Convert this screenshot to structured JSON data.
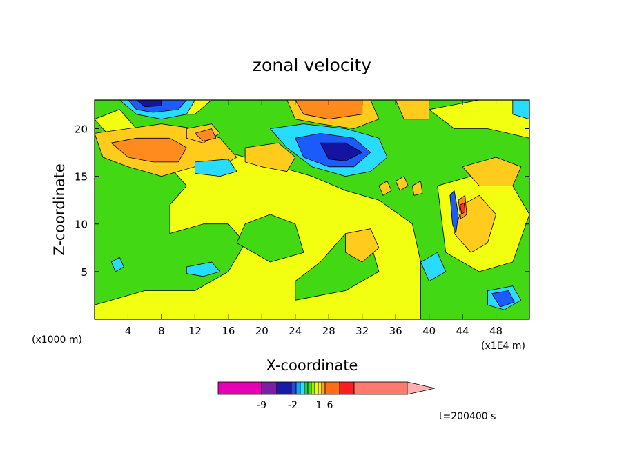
{
  "chart_data": {
    "type": "heatmap",
    "title": "zonal velocity",
    "xlabel": "X-coordinate",
    "ylabel": "Z-coordinate",
    "x_unit_left": "(x1000 m)",
    "x_unit_right": "(x1E4 m)",
    "xlim": [
      0,
      52
    ],
    "ylim": [
      0,
      23
    ],
    "x_ticks": [
      "4",
      "8",
      "12",
      "16",
      "20",
      "24",
      "28",
      "32",
      "36",
      "40",
      "44",
      "48"
    ],
    "x_tick_values": [
      4,
      8,
      12,
      16,
      20,
      24,
      28,
      32,
      36,
      40,
      44,
      48
    ],
    "y_ticks": [
      "5",
      "10",
      "15",
      "20"
    ],
    "y_tick_values": [
      5,
      10,
      15,
      20
    ],
    "time_label": "t=200400 s",
    "colorbar": {
      "labels": [
        "-9",
        "-2",
        "1",
        "6"
      ],
      "colors": [
        "#e600b4",
        "#7a1fa6",
        "#1a1aa6",
        "#2a48d6",
        "#1e9bff",
        "#28e0ff",
        "#20c860",
        "#46dc14",
        "#9ef000",
        "#e8ff00",
        "#ffe01e",
        "#ffa01e",
        "#ff6e14",
        "#ff1e1e",
        "#ff7a6e",
        "#ffb0b0"
      ]
    },
    "palette": {
      "green": "#42d814",
      "yellow": "#f2ff10",
      "gold": "#ffcc1e",
      "orange": "#ff8a1e",
      "cyan": "#28dcff",
      "blue": "#1c5cff",
      "darkblue": "#1414a0",
      "red": "#ff3218"
    },
    "regions": [
      {
        "level": "green",
        "points": [
          [
            0,
            23
          ],
          [
            0,
            0
          ],
          [
            52,
            0
          ],
          [
            52,
            23
          ]
        ]
      },
      {
        "level": "yellow",
        "points": [
          [
            9,
            18
          ],
          [
            16,
            17.5
          ],
          [
            22,
            16
          ],
          [
            26,
            15
          ],
          [
            30,
            13.5
          ],
          [
            34,
            12.5
          ],
          [
            38,
            10
          ],
          [
            39,
            6
          ],
          [
            39,
            0
          ],
          [
            0,
            0
          ],
          [
            0,
            1.5
          ],
          [
            6,
            3
          ],
          [
            12,
            3
          ],
          [
            16,
            5
          ],
          [
            18,
            8
          ],
          [
            16,
            10
          ],
          [
            13,
            10
          ],
          [
            9,
            9
          ],
          [
            9,
            12
          ],
          [
            11,
            14
          ],
          [
            9,
            16
          ]
        ]
      },
      {
        "level": "green",
        "points": [
          [
            17,
            8
          ],
          [
            21,
            6
          ],
          [
            25,
            7
          ],
          [
            24,
            10
          ],
          [
            21,
            11
          ],
          [
            18,
            10
          ]
        ]
      },
      {
        "level": "green",
        "points": [
          [
            24,
            2
          ],
          [
            30,
            3
          ],
          [
            34,
            5
          ],
          [
            33,
            8
          ],
          [
            30,
            9
          ],
          [
            27,
            6
          ],
          [
            24,
            4
          ]
        ]
      },
      {
        "level": "yellow",
        "points": [
          [
            6,
            23
          ],
          [
            14,
            23
          ],
          [
            12,
            21.5
          ],
          [
            8,
            21.5
          ]
        ]
      },
      {
        "level": "yellow",
        "points": [
          [
            40,
            22
          ],
          [
            46,
            23
          ],
          [
            52,
            23
          ],
          [
            52,
            19
          ],
          [
            47,
            20
          ],
          [
            43,
            20
          ]
        ]
      },
      {
        "level": "yellow",
        "points": [
          [
            41,
            14
          ],
          [
            45,
            15
          ],
          [
            50,
            14
          ],
          [
            52,
            11
          ],
          [
            50,
            6
          ],
          [
            46,
            5
          ],
          [
            42,
            7
          ]
        ]
      },
      {
        "level": "yellow",
        "points": [
          [
            0,
            21
          ],
          [
            3,
            22
          ],
          [
            5,
            20
          ],
          [
            2,
            19
          ]
        ]
      },
      {
        "level": "gold",
        "points": [
          [
            0,
            19.5
          ],
          [
            4,
            20
          ],
          [
            8,
            20.5
          ],
          [
            12,
            20
          ],
          [
            15,
            19
          ],
          [
            17,
            17
          ],
          [
            15,
            16
          ],
          [
            12,
            16
          ],
          [
            8,
            15
          ],
          [
            4,
            16
          ],
          [
            1,
            17
          ]
        ]
      },
      {
        "level": "orange",
        "points": [
          [
            2,
            18.5
          ],
          [
            5,
            19
          ],
          [
            9,
            19
          ],
          [
            11,
            18
          ],
          [
            10,
            16.5
          ],
          [
            7,
            16.5
          ],
          [
            4,
            17
          ]
        ]
      },
      {
        "level": "gold",
        "points": [
          [
            18,
            18
          ],
          [
            22,
            18.5
          ],
          [
            24,
            17
          ],
          [
            23,
            15.5
          ],
          [
            20,
            16
          ],
          [
            18,
            16.5
          ]
        ]
      },
      {
        "level": "gold",
        "points": [
          [
            23,
            23
          ],
          [
            33,
            23
          ],
          [
            34,
            21
          ],
          [
            31,
            20
          ],
          [
            27,
            20.5
          ],
          [
            24,
            21
          ]
        ]
      },
      {
        "level": "orange",
        "points": [
          [
            24,
            23
          ],
          [
            32,
            23
          ],
          [
            32,
            21.5
          ],
          [
            28,
            21
          ],
          [
            25,
            21.5
          ]
        ]
      },
      {
        "level": "gold",
        "points": [
          [
            11,
            20
          ],
          [
            14,
            20.5
          ],
          [
            15,
            19.5
          ],
          [
            13,
            18.5
          ],
          [
            11,
            19
          ]
        ]
      },
      {
        "level": "orange",
        "points": [
          [
            12,
            19.5
          ],
          [
            14,
            20
          ],
          [
            14.5,
            19
          ],
          [
            13,
            18.7
          ]
        ]
      },
      {
        "level": "gold",
        "points": [
          [
            30,
            9
          ],
          [
            33,
            9.5
          ],
          [
            34,
            7.5
          ],
          [
            32,
            6
          ],
          [
            30,
            7
          ]
        ]
      },
      {
        "level": "gold",
        "points": [
          [
            36,
            23
          ],
          [
            40,
            23
          ],
          [
            40,
            21
          ],
          [
            37,
            21
          ]
        ]
      },
      {
        "level": "gold",
        "points": [
          [
            44,
            16
          ],
          [
            48,
            17
          ],
          [
            51,
            16
          ],
          [
            50,
            14
          ],
          [
            46,
            14
          ]
        ]
      },
      {
        "level": "gold",
        "points": [
          [
            44,
            12
          ],
          [
            46,
            13
          ],
          [
            48,
            11
          ],
          [
            47,
            8
          ],
          [
            45,
            7
          ],
          [
            43,
            9
          ]
        ]
      },
      {
        "level": "cyan",
        "points": [
          [
            21,
            20
          ],
          [
            25,
            20.5
          ],
          [
            30,
            20
          ],
          [
            34,
            19
          ],
          [
            35,
            17
          ],
          [
            33,
            15.5
          ],
          [
            30,
            15
          ],
          [
            26,
            16
          ],
          [
            23,
            18
          ]
        ]
      },
      {
        "level": "blue",
        "points": [
          [
            24,
            19
          ],
          [
            27,
            19.5
          ],
          [
            31,
            19
          ],
          [
            33,
            17.5
          ],
          [
            31,
            16
          ],
          [
            28,
            16
          ],
          [
            25,
            17
          ]
        ]
      },
      {
        "level": "darkblue",
        "points": [
          [
            27,
            18.5
          ],
          [
            30,
            18.5
          ],
          [
            32,
            17.5
          ],
          [
            30,
            16.6
          ],
          [
            28,
            16.8
          ]
        ]
      },
      {
        "level": "cyan",
        "points": [
          [
            3,
            23
          ],
          [
            12,
            23
          ],
          [
            11,
            21.5
          ],
          [
            8,
            21
          ],
          [
            5,
            21.5
          ]
        ]
      },
      {
        "level": "blue",
        "points": [
          [
            4,
            23
          ],
          [
            11,
            23
          ],
          [
            10,
            22
          ],
          [
            7,
            21.7
          ],
          [
            5,
            22
          ]
        ]
      },
      {
        "level": "darkblue",
        "points": [
          [
            5,
            23
          ],
          [
            8,
            23
          ],
          [
            8,
            22.4
          ],
          [
            6,
            22.3
          ]
        ]
      },
      {
        "level": "cyan",
        "points": [
          [
            12,
            16.5
          ],
          [
            16,
            16.8
          ],
          [
            17,
            15.5
          ],
          [
            15,
            15
          ],
          [
            12,
            15.3
          ]
        ]
      },
      {
        "level": "cyan",
        "points": [
          [
            11,
            5.5
          ],
          [
            14,
            6
          ],
          [
            15,
            5
          ],
          [
            13,
            4.5
          ],
          [
            11,
            4.8
          ]
        ]
      },
      {
        "level": "cyan",
        "points": [
          [
            2,
            6
          ],
          [
            3,
            6.5
          ],
          [
            3.5,
            5.5
          ],
          [
            2.5,
            5
          ]
        ]
      },
      {
        "level": "cyan",
        "points": [
          [
            47,
            3
          ],
          [
            50,
            3.5
          ],
          [
            51,
            2
          ],
          [
            49,
            1
          ],
          [
            47,
            1.5
          ]
        ]
      },
      {
        "level": "blue",
        "points": [
          [
            47.5,
            2.7
          ],
          [
            49.5,
            3
          ],
          [
            50.2,
            1.8
          ],
          [
            48.5,
            1.3
          ]
        ]
      },
      {
        "level": "cyan",
        "points": [
          [
            39,
            6
          ],
          [
            41,
            7
          ],
          [
            42,
            5
          ],
          [
            40,
            4
          ]
        ]
      },
      {
        "level": "cyan",
        "points": [
          [
            50,
            23
          ],
          [
            52,
            23
          ],
          [
            52,
            21
          ],
          [
            50,
            21.5
          ]
        ]
      },
      {
        "level": "blue",
        "points": [
          [
            42.5,
            13
          ],
          [
            43,
            13.5
          ],
          [
            43.5,
            11
          ],
          [
            43.2,
            9
          ],
          [
            42.8,
            10
          ]
        ]
      },
      {
        "level": "orange",
        "points": [
          [
            43.5,
            12.5
          ],
          [
            44.3,
            13
          ],
          [
            44.5,
            11
          ],
          [
            43.8,
            10.5
          ]
        ]
      },
      {
        "level": "red",
        "points": [
          [
            43.7,
            12
          ],
          [
            44.2,
            12.2
          ],
          [
            44.3,
            11.3
          ],
          [
            43.9,
            11
          ]
        ]
      },
      {
        "level": "gold",
        "points": [
          [
            34,
            14
          ],
          [
            35,
            14.5
          ],
          [
            35.5,
            13.5
          ],
          [
            34.5,
            13
          ]
        ]
      },
      {
        "level": "gold",
        "points": [
          [
            36,
            14.5
          ],
          [
            37,
            15
          ],
          [
            37.5,
            14
          ],
          [
            36.5,
            13.5
          ]
        ]
      },
      {
        "level": "gold",
        "points": [
          [
            38,
            14
          ],
          [
            39,
            14.5
          ],
          [
            39.2,
            13.2
          ],
          [
            38.2,
            13
          ]
        ]
      }
    ]
  }
}
